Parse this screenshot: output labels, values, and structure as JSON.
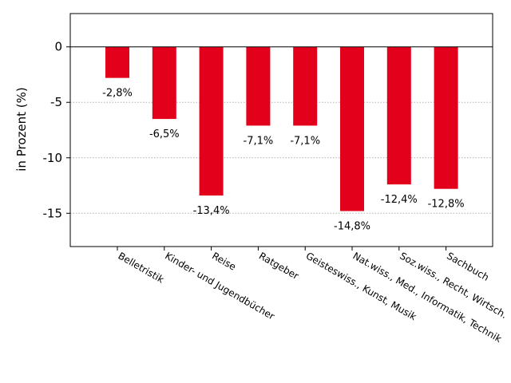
{
  "chart_data": {
    "type": "bar",
    "categories": [
      "Belletristik",
      "Kinder- und Jugendbücher",
      "Reise",
      "Ratgeber",
      "Geisteswiss., Kunst, Musik",
      "Nat.wiss., Med., Informatik, Technik",
      "Soz.wiss., Recht, Wirtsch.",
      "Sachbuch"
    ],
    "values": [
      -2.8,
      -6.5,
      -13.4,
      -7.1,
      -7.1,
      -14.8,
      -12.4,
      -12.8
    ],
    "data_labels": [
      "-2,8%",
      "-6,5%",
      "-13,4%",
      "-7,1%",
      "-7,1%",
      "-14,8%",
      "-12,4%",
      "-12,8%"
    ],
    "title": "",
    "xlabel": "",
    "ylabel": "in Prozent (%)",
    "ylim": [
      -18,
      3
    ],
    "yticks": [
      0,
      -5,
      -10,
      -15
    ],
    "ytick_labels": [
      "0",
      "-5",
      "-10",
      "-15"
    ],
    "grid": "horizontal dotted",
    "bar_color": "#e2001a"
  }
}
